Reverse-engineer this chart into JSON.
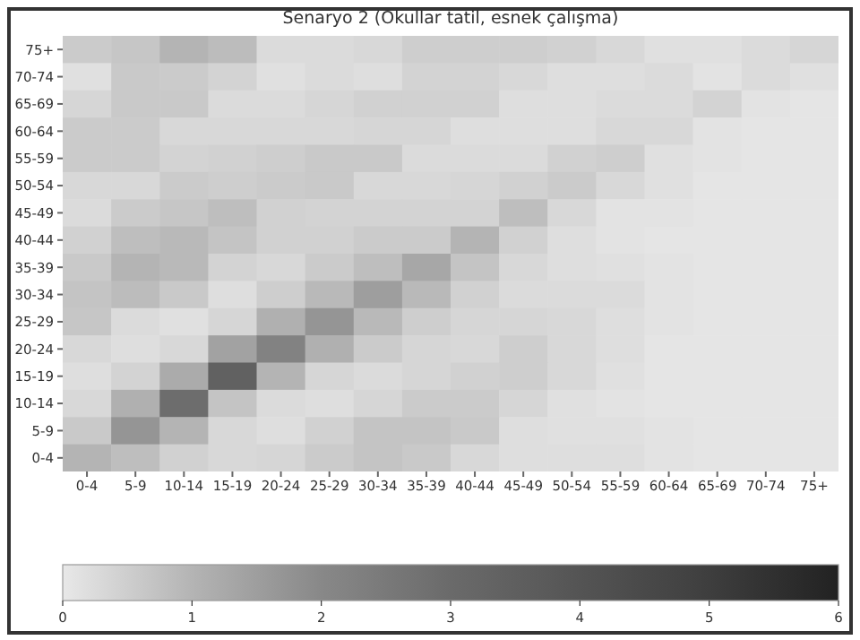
{
  "chart_data": {
    "type": "heatmap",
    "title": "Senaryo 2 (Okullar tatil, esnek çalışma)",
    "categories": [
      "0-4",
      "5-9",
      "10-14",
      "15-19",
      "20-24",
      "25-29",
      "30-34",
      "35-39",
      "40-44",
      "45-49",
      "50-54",
      "55-59",
      "60-64",
      "65-69",
      "70-74",
      "75+"
    ],
    "y_categories": [
      "75+",
      "70-74",
      "65-69",
      "60-64",
      "55-59",
      "50-54",
      "45-49",
      "40-44",
      "35-39",
      "30-34",
      "25-29",
      "20-24",
      "15-19",
      "10-14",
      "5-9",
      "0-4"
    ],
    "cells": [
      [
        0.55,
        0.65,
        1.0,
        0.85,
        0.25,
        0.25,
        0.3,
        0.5,
        0.5,
        0.5,
        0.45,
        0.3,
        0.15,
        0.15,
        0.25,
        0.35
      ],
      [
        0.15,
        0.6,
        0.55,
        0.4,
        0.15,
        0.25,
        0.2,
        0.4,
        0.4,
        0.3,
        0.2,
        0.2,
        0.25,
        0.1,
        0.25,
        0.15
      ],
      [
        0.35,
        0.6,
        0.6,
        0.25,
        0.25,
        0.35,
        0.45,
        0.45,
        0.45,
        0.2,
        0.2,
        0.25,
        0.25,
        0.4,
        0.1,
        0.05
      ],
      [
        0.55,
        0.55,
        0.3,
        0.3,
        0.3,
        0.3,
        0.35,
        0.35,
        0.2,
        0.2,
        0.2,
        0.3,
        0.3,
        0.1,
        0.05,
        0.05
      ],
      [
        0.55,
        0.55,
        0.4,
        0.45,
        0.5,
        0.6,
        0.6,
        0.25,
        0.25,
        0.25,
        0.45,
        0.5,
        0.15,
        0.1,
        0.05,
        0.05
      ],
      [
        0.3,
        0.3,
        0.55,
        0.5,
        0.55,
        0.6,
        0.3,
        0.3,
        0.35,
        0.45,
        0.55,
        0.3,
        0.15,
        0.05,
        0.05,
        0.05
      ],
      [
        0.25,
        0.55,
        0.65,
        0.8,
        0.45,
        0.4,
        0.4,
        0.4,
        0.4,
        0.8,
        0.3,
        0.1,
        0.1,
        0.05,
        0.05,
        0.05
      ],
      [
        0.45,
        0.8,
        0.9,
        0.7,
        0.45,
        0.45,
        0.55,
        0.55,
        1.0,
        0.45,
        0.2,
        0.1,
        0.05,
        0.05,
        0.05,
        0.05
      ],
      [
        0.6,
        1.0,
        0.9,
        0.4,
        0.3,
        0.55,
        0.8,
        1.3,
        0.7,
        0.3,
        0.2,
        0.15,
        0.1,
        0.05,
        0.05,
        0.05
      ],
      [
        0.7,
        0.85,
        0.6,
        0.2,
        0.5,
        0.9,
        1.5,
        0.9,
        0.45,
        0.25,
        0.25,
        0.25,
        0.1,
        0.05,
        0.05,
        0.05
      ],
      [
        0.65,
        0.25,
        0.15,
        0.35,
        1.1,
        1.7,
        0.9,
        0.5,
        0.35,
        0.35,
        0.3,
        0.2,
        0.1,
        0.05,
        0.05,
        0.05
      ],
      [
        0.3,
        0.2,
        0.3,
        1.4,
        2.2,
        1.1,
        0.55,
        0.35,
        0.3,
        0.5,
        0.3,
        0.2,
        0.05,
        0.05,
        0.05,
        0.05
      ],
      [
        0.2,
        0.4,
        1.2,
        3.4,
        1.0,
        0.35,
        0.25,
        0.35,
        0.45,
        0.5,
        0.3,
        0.15,
        0.05,
        0.05,
        0.05,
        0.05
      ],
      [
        0.3,
        1.1,
        2.9,
        0.7,
        0.25,
        0.2,
        0.35,
        0.55,
        0.55,
        0.35,
        0.15,
        0.1,
        0.05,
        0.05,
        0.05,
        0.05
      ],
      [
        0.6,
        1.7,
        1.0,
        0.3,
        0.2,
        0.45,
        0.7,
        0.7,
        0.6,
        0.2,
        0.15,
        0.15,
        0.1,
        0.05,
        0.05,
        0.05
      ],
      [
        1.0,
        0.8,
        0.45,
        0.3,
        0.35,
        0.55,
        0.7,
        0.6,
        0.3,
        0.2,
        0.2,
        0.2,
        0.1,
        0.05,
        0.05,
        0.05
      ]
    ],
    "clim": [
      0,
      6
    ],
    "cticks": [
      0,
      1,
      2,
      3,
      4,
      5,
      6
    ]
  }
}
